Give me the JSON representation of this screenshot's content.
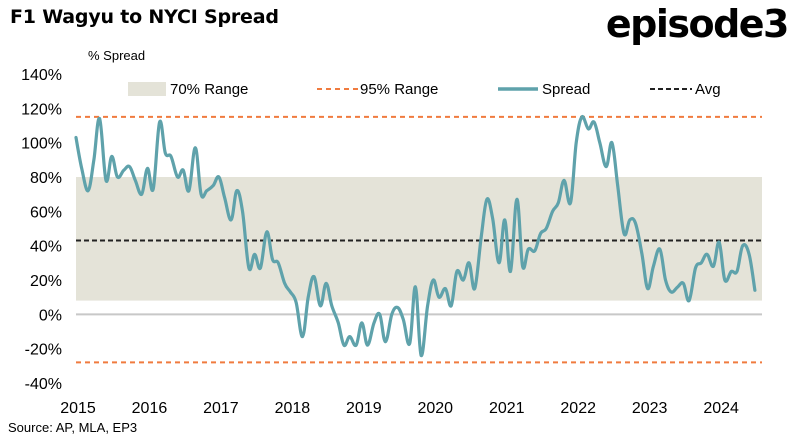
{
  "title": "F1 Wagyu to NYCI Spread",
  "logo": "episode3",
  "source": "Source: AP, MLA, EP3",
  "colors": {
    "band": "#e4e3d8",
    "range95": "#f07b3f",
    "spread": "#5fa2ab",
    "avg": "#222222",
    "zero": "#c8c8c8"
  },
  "chart_data": {
    "type": "line",
    "ylabel": "% Spread",
    "ylim": [
      -40,
      140
    ],
    "y_ticks": [
      -40,
      -20,
      0,
      20,
      40,
      60,
      80,
      100,
      120,
      140
    ],
    "y_tick_labels": [
      "-40%",
      "-20%",
      "0%",
      "20%",
      "40%",
      "60%",
      "80%",
      "100%",
      "120%",
      "140%"
    ],
    "x_ticks": [
      2015,
      2016,
      2017,
      2018,
      2019,
      2020,
      2021,
      2022,
      2023,
      2024
    ],
    "x_tick_labels": [
      "2015",
      "2016",
      "2017",
      "2018",
      "2019",
      "2020",
      "2021",
      "2022",
      "2023",
      "2024"
    ],
    "xlim": [
      2015.0,
      2024.6
    ],
    "grid": false,
    "legend_position": "top",
    "legend": [
      "70% Range",
      "95% Range",
      "Spread",
      "Avg"
    ],
    "range70": [
      8,
      80
    ],
    "range95": [
      -28,
      115
    ],
    "avg": 43,
    "series": [
      {
        "name": "Spread",
        "x": [
          2015.0,
          2015.08,
          2015.17,
          2015.25,
          2015.33,
          2015.42,
          2015.5,
          2015.58,
          2015.67,
          2015.75,
          2015.83,
          2015.92,
          2016.0,
          2016.08,
          2016.17,
          2016.25,
          2016.33,
          2016.42,
          2016.5,
          2016.58,
          2016.67,
          2016.75,
          2016.83,
          2016.92,
          2017.0,
          2017.08,
          2017.17,
          2017.25,
          2017.33,
          2017.42,
          2017.5,
          2017.58,
          2017.67,
          2017.75,
          2017.83,
          2017.92,
          2018.0,
          2018.08,
          2018.17,
          2018.25,
          2018.33,
          2018.42,
          2018.5,
          2018.58,
          2018.67,
          2018.75,
          2018.83,
          2018.92,
          2019.0,
          2019.08,
          2019.17,
          2019.25,
          2019.33,
          2019.42,
          2019.5,
          2019.58,
          2019.67,
          2019.75,
          2019.83,
          2019.92,
          2020.0,
          2020.08,
          2020.17,
          2020.25,
          2020.33,
          2020.42,
          2020.5,
          2020.58,
          2020.67,
          2020.75,
          2020.83,
          2020.92,
          2021.0,
          2021.08,
          2021.17,
          2021.25,
          2021.33,
          2021.42,
          2021.5,
          2021.58,
          2021.67,
          2021.75,
          2021.83,
          2021.92,
          2022.0,
          2022.08,
          2022.17,
          2022.25,
          2022.33,
          2022.42,
          2022.5,
          2022.58,
          2022.67,
          2022.75,
          2022.83,
          2022.92,
          2023.0,
          2023.08,
          2023.17,
          2023.25,
          2023.33,
          2023.42,
          2023.5,
          2023.58,
          2023.67,
          2023.75,
          2023.83,
          2023.92,
          2024.0,
          2024.08,
          2024.17,
          2024.25,
          2024.33,
          2024.42,
          2024.5
        ],
        "values": [
          103,
          85,
          72,
          90,
          114,
          78,
          92,
          80,
          84,
          86,
          78,
          70,
          85,
          73,
          112,
          94,
          92,
          80,
          84,
          72,
          97,
          70,
          72,
          75,
          80,
          68,
          55,
          72,
          60,
          27,
          35,
          27,
          48,
          32,
          30,
          18,
          13,
          7,
          -13,
          10,
          22,
          5,
          18,
          5,
          -5,
          -18,
          -13,
          -18,
          -5,
          -18,
          -5,
          0,
          -16,
          0,
          4,
          -3,
          -17,
          16,
          -24,
          5,
          20,
          10,
          15,
          5,
          25,
          20,
          30,
          15,
          45,
          67,
          56,
          30,
          55,
          25,
          67,
          28,
          38,
          37,
          47,
          50,
          60,
          65,
          78,
          65,
          100,
          115,
          108,
          112,
          100,
          86,
          100,
          75,
          47,
          55,
          53,
          35,
          15,
          28,
          38,
          20,
          13,
          16,
          18,
          8,
          27,
          30,
          35,
          28,
          42,
          20,
          25,
          25,
          40,
          35,
          14
        ]
      }
    ]
  }
}
